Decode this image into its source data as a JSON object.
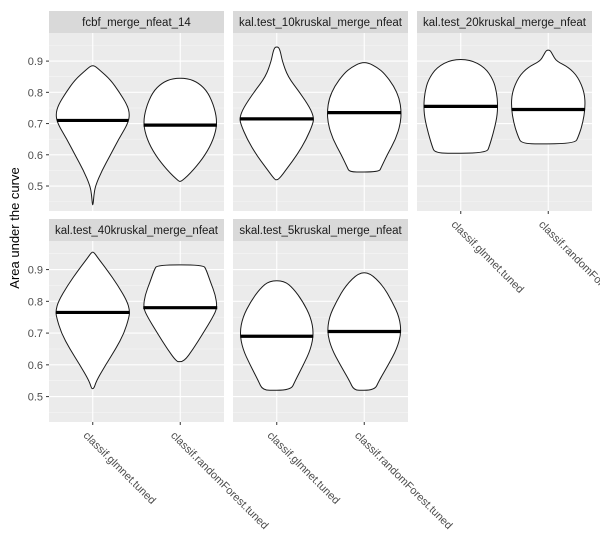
{
  "chart_data": {
    "type": "violin",
    "ylabel": "Area under the curve",
    "xlabel": "",
    "ylim": [
      0.42,
      0.99
    ],
    "yticks": [
      0.5,
      0.6,
      0.7,
      0.8,
      0.9
    ],
    "ytick_labels": [
      "0.5",
      "0.6",
      "0.7",
      "0.8",
      "0.9"
    ],
    "grid": true,
    "legend": "none",
    "categories": [
      "classif.glmnet.tuned",
      "classif.randomForest.tuned"
    ],
    "facets": [
      {
        "label": "fcbf_merge_nfeat_14",
        "violins": [
          {
            "category": "classif.glmnet.tuned",
            "median": 0.71,
            "profile": [
              [
                0.44,
                0.01
              ],
              [
                0.47,
                0.03
              ],
              [
                0.5,
                0.07
              ],
              [
                0.55,
                0.25
              ],
              [
                0.6,
                0.48
              ],
              [
                0.65,
                0.7
              ],
              [
                0.7,
                0.95
              ],
              [
                0.73,
                1.0
              ],
              [
                0.76,
                0.93
              ],
              [
                0.8,
                0.72
              ],
              [
                0.84,
                0.48
              ],
              [
                0.87,
                0.2
              ],
              [
                0.885,
                0.05
              ]
            ]
          },
          {
            "category": "classif.randomForest.tuned",
            "median": 0.695,
            "profile": [
              [
                0.515,
                0.04
              ],
              [
                0.55,
                0.35
              ],
              [
                0.6,
                0.68
              ],
              [
                0.65,
                0.9
              ],
              [
                0.7,
                1.0
              ],
              [
                0.75,
                0.93
              ],
              [
                0.8,
                0.75
              ],
              [
                0.83,
                0.5
              ],
              [
                0.845,
                0.2
              ]
            ]
          }
        ]
      },
      {
        "label": "kal.test_10kruskal_merge_nfeat",
        "violins": [
          {
            "category": "classif.glmnet.tuned",
            "median": 0.715,
            "profile": [
              [
                0.52,
                0.05
              ],
              [
                0.56,
                0.3
              ],
              [
                0.6,
                0.55
              ],
              [
                0.65,
                0.8
              ],
              [
                0.7,
                0.98
              ],
              [
                0.72,
                1.0
              ],
              [
                0.75,
                0.9
              ],
              [
                0.8,
                0.62
              ],
              [
                0.85,
                0.3
              ],
              [
                0.9,
                0.15
              ],
              [
                0.93,
                0.1
              ],
              [
                0.945,
                0.05
              ]
            ]
          },
          {
            "category": "classif.randomForest.tuned",
            "median": 0.735,
            "profile": [
              [
                0.545,
                0.4
              ],
              [
                0.56,
                0.46
              ],
              [
                0.6,
                0.62
              ],
              [
                0.65,
                0.85
              ],
              [
                0.7,
                0.98
              ],
              [
                0.74,
                1.0
              ],
              [
                0.78,
                0.95
              ],
              [
                0.82,
                0.8
              ],
              [
                0.86,
                0.55
              ],
              [
                0.88,
                0.35
              ],
              [
                0.895,
                0.1
              ]
            ]
          }
        ]
      },
      {
        "label": "kal.test_20kruskal_merge_nfeat",
        "violins": [
          {
            "category": "classif.glmnet.tuned",
            "median": 0.755,
            "profile": [
              [
                0.605,
                0.7
              ],
              [
                0.63,
                0.78
              ],
              [
                0.67,
                0.88
              ],
              [
                0.72,
                0.98
              ],
              [
                0.76,
                1.0
              ],
              [
                0.8,
                0.97
              ],
              [
                0.84,
                0.88
              ],
              [
                0.88,
                0.65
              ],
              [
                0.905,
                0.25
              ]
            ]
          },
          {
            "category": "classif.randomForest.tuned",
            "median": 0.745,
            "profile": [
              [
                0.635,
                0.72
              ],
              [
                0.66,
                0.82
              ],
              [
                0.7,
                0.93
              ],
              [
                0.75,
                1.0
              ],
              [
                0.8,
                0.98
              ],
              [
                0.85,
                0.8
              ],
              [
                0.88,
                0.55
              ],
              [
                0.9,
                0.22
              ],
              [
                0.92,
                0.12
              ],
              [
                0.935,
                0.05
              ]
            ]
          }
        ]
      },
      {
        "label": "kal.test_40kruskal_merge_nfeat",
        "violins": [
          {
            "category": "classif.glmnet.tuned",
            "median": 0.765,
            "profile": [
              [
                0.525,
                0.03
              ],
              [
                0.55,
                0.1
              ],
              [
                0.6,
                0.35
              ],
              [
                0.65,
                0.62
              ],
              [
                0.7,
                0.85
              ],
              [
                0.75,
                0.98
              ],
              [
                0.77,
                1.0
              ],
              [
                0.8,
                0.93
              ],
              [
                0.85,
                0.68
              ],
              [
                0.9,
                0.38
              ],
              [
                0.935,
                0.15
              ],
              [
                0.955,
                0.03
              ]
            ]
          },
          {
            "category": "classif.randomForest.tuned",
            "median": 0.78,
            "profile": [
              [
                0.61,
                0.1
              ],
              [
                0.65,
                0.35
              ],
              [
                0.7,
                0.62
              ],
              [
                0.75,
                0.88
              ],
              [
                0.78,
                1.0
              ],
              [
                0.82,
                0.95
              ],
              [
                0.86,
                0.82
              ],
              [
                0.9,
                0.7
              ],
              [
                0.915,
                0.62
              ]
            ]
          }
        ]
      },
      {
        "label": "skal.test_5kruskal_merge_nfeat",
        "violins": [
          {
            "category": "classif.glmnet.tuned",
            "median": 0.69,
            "profile": [
              [
                0.52,
                0.38
              ],
              [
                0.55,
                0.5
              ],
              [
                0.6,
                0.72
              ],
              [
                0.65,
                0.92
              ],
              [
                0.7,
                1.0
              ],
              [
                0.75,
                0.92
              ],
              [
                0.8,
                0.7
              ],
              [
                0.84,
                0.45
              ],
              [
                0.865,
                0.2
              ]
            ]
          },
          {
            "category": "classif.randomForest.tuned",
            "median": 0.705,
            "profile": [
              [
                0.52,
                0.28
              ],
              [
                0.55,
                0.4
              ],
              [
                0.6,
                0.65
              ],
              [
                0.65,
                0.88
              ],
              [
                0.7,
                1.0
              ],
              [
                0.75,
                0.95
              ],
              [
                0.8,
                0.75
              ],
              [
                0.85,
                0.5
              ],
              [
                0.89,
                0.15
              ]
            ]
          }
        ]
      }
    ]
  }
}
